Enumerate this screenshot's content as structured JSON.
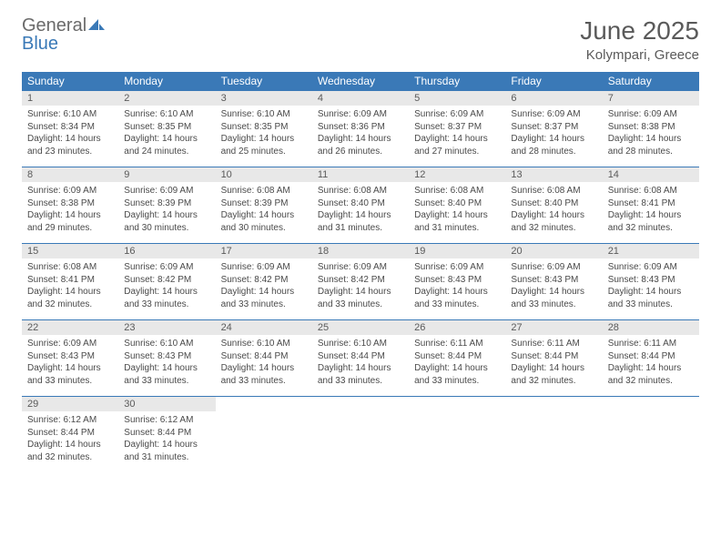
{
  "logo": {
    "top": "General",
    "bottom": "Blue"
  },
  "title": "June 2025",
  "location": "Kolympari, Greece",
  "colors": {
    "header_bg": "#3a79b7",
    "header_text": "#ffffff",
    "daynum_bg": "#e8e8e8",
    "text": "#4a4a4a",
    "border": "#3a79b7"
  },
  "fonts": {
    "title_pt": 28,
    "location_pt": 15,
    "dow_pt": 12,
    "daynum_pt": 11,
    "cell_pt": 10
  },
  "days_of_week": [
    "Sunday",
    "Monday",
    "Tuesday",
    "Wednesday",
    "Thursday",
    "Friday",
    "Saturday"
  ],
  "weeks": [
    [
      {
        "n": "1",
        "sr": "6:10 AM",
        "ss": "8:34 PM",
        "dh": "14",
        "dm": "23"
      },
      {
        "n": "2",
        "sr": "6:10 AM",
        "ss": "8:35 PM",
        "dh": "14",
        "dm": "24"
      },
      {
        "n": "3",
        "sr": "6:10 AM",
        "ss": "8:35 PM",
        "dh": "14",
        "dm": "25"
      },
      {
        "n": "4",
        "sr": "6:09 AM",
        "ss": "8:36 PM",
        "dh": "14",
        "dm": "26"
      },
      {
        "n": "5",
        "sr": "6:09 AM",
        "ss": "8:37 PM",
        "dh": "14",
        "dm": "27"
      },
      {
        "n": "6",
        "sr": "6:09 AM",
        "ss": "8:37 PM",
        "dh": "14",
        "dm": "28"
      },
      {
        "n": "7",
        "sr": "6:09 AM",
        "ss": "8:38 PM",
        "dh": "14",
        "dm": "28"
      }
    ],
    [
      {
        "n": "8",
        "sr": "6:09 AM",
        "ss": "8:38 PM",
        "dh": "14",
        "dm": "29"
      },
      {
        "n": "9",
        "sr": "6:09 AM",
        "ss": "8:39 PM",
        "dh": "14",
        "dm": "30"
      },
      {
        "n": "10",
        "sr": "6:08 AM",
        "ss": "8:39 PM",
        "dh": "14",
        "dm": "30"
      },
      {
        "n": "11",
        "sr": "6:08 AM",
        "ss": "8:40 PM",
        "dh": "14",
        "dm": "31"
      },
      {
        "n": "12",
        "sr": "6:08 AM",
        "ss": "8:40 PM",
        "dh": "14",
        "dm": "31"
      },
      {
        "n": "13",
        "sr": "6:08 AM",
        "ss": "8:40 PM",
        "dh": "14",
        "dm": "32"
      },
      {
        "n": "14",
        "sr": "6:08 AM",
        "ss": "8:41 PM",
        "dh": "14",
        "dm": "32"
      }
    ],
    [
      {
        "n": "15",
        "sr": "6:08 AM",
        "ss": "8:41 PM",
        "dh": "14",
        "dm": "32"
      },
      {
        "n": "16",
        "sr": "6:09 AM",
        "ss": "8:42 PM",
        "dh": "14",
        "dm": "33"
      },
      {
        "n": "17",
        "sr": "6:09 AM",
        "ss": "8:42 PM",
        "dh": "14",
        "dm": "33"
      },
      {
        "n": "18",
        "sr": "6:09 AM",
        "ss": "8:42 PM",
        "dh": "14",
        "dm": "33"
      },
      {
        "n": "19",
        "sr": "6:09 AM",
        "ss": "8:43 PM",
        "dh": "14",
        "dm": "33"
      },
      {
        "n": "20",
        "sr": "6:09 AM",
        "ss": "8:43 PM",
        "dh": "14",
        "dm": "33"
      },
      {
        "n": "21",
        "sr": "6:09 AM",
        "ss": "8:43 PM",
        "dh": "14",
        "dm": "33"
      }
    ],
    [
      {
        "n": "22",
        "sr": "6:09 AM",
        "ss": "8:43 PM",
        "dh": "14",
        "dm": "33"
      },
      {
        "n": "23",
        "sr": "6:10 AM",
        "ss": "8:43 PM",
        "dh": "14",
        "dm": "33"
      },
      {
        "n": "24",
        "sr": "6:10 AM",
        "ss": "8:44 PM",
        "dh": "14",
        "dm": "33"
      },
      {
        "n": "25",
        "sr": "6:10 AM",
        "ss": "8:44 PM",
        "dh": "14",
        "dm": "33"
      },
      {
        "n": "26",
        "sr": "6:11 AM",
        "ss": "8:44 PM",
        "dh": "14",
        "dm": "33"
      },
      {
        "n": "27",
        "sr": "6:11 AM",
        "ss": "8:44 PM",
        "dh": "14",
        "dm": "32"
      },
      {
        "n": "28",
        "sr": "6:11 AM",
        "ss": "8:44 PM",
        "dh": "14",
        "dm": "32"
      }
    ],
    [
      {
        "n": "29",
        "sr": "6:12 AM",
        "ss": "8:44 PM",
        "dh": "14",
        "dm": "32"
      },
      {
        "n": "30",
        "sr": "6:12 AM",
        "ss": "8:44 PM",
        "dh": "14",
        "dm": "31"
      },
      null,
      null,
      null,
      null,
      null
    ]
  ]
}
